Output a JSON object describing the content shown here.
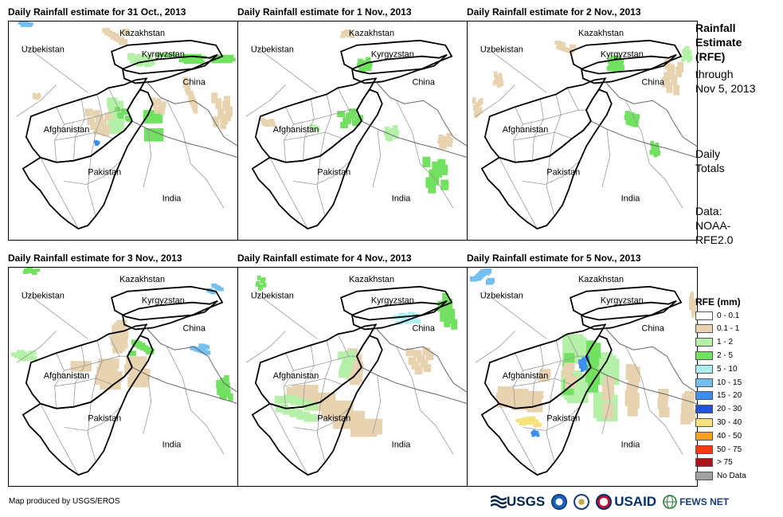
{
  "panels": [
    {
      "title": "Daily Rainfall estimate for 31 Oct., 2013"
    },
    {
      "title": "Daily Rainfall estimate for 1 Nov., 2013"
    },
    {
      "title": "Daily Rainfall estimate for 2 Nov., 2013"
    },
    {
      "title": "Daily Rainfall estimate for 3 Nov., 2013"
    },
    {
      "title": "Daily Rainfall estimate for 4 Nov., 2013"
    },
    {
      "title": "Daily Rainfall estimate for 5 Nov., 2013"
    }
  ],
  "countries": {
    "kazakhstan": "Kazakhstan",
    "uzbekistan": "Uzbekistan",
    "kyrgyzstan": "Kyrgyzstan",
    "china": "China",
    "afghanistan": "Afghanistan",
    "pakistan": "Pakistan",
    "india": "India"
  },
  "sidebar": {
    "title_line1": "Rainfall",
    "title_line2": "Estimate",
    "title_line3": "(RFE)",
    "through": "through",
    "date": "Nov 5, 2013",
    "daily1": "Daily",
    "daily2": "Totals",
    "data1": "Data:",
    "data2": "NOAA-",
    "data3": "RFE2.0"
  },
  "legend": {
    "title": "RFE (mm)",
    "items": [
      {
        "label": "0 - 0.1",
        "color": "#ffffff"
      },
      {
        "label": "0.1 - 1",
        "color": "#e8d3b0"
      },
      {
        "label": "1 - 2",
        "color": "#b4f0a8"
      },
      {
        "label": "2 - 5",
        "color": "#72e060"
      },
      {
        "label": "5 - 10",
        "color": "#aeeef2"
      },
      {
        "label": "10 - 15",
        "color": "#74bff0"
      },
      {
        "label": "15 - 20",
        "color": "#3c8ff0"
      },
      {
        "label": "20 - 30",
        "color": "#1f54d8"
      },
      {
        "label": "30 - 40",
        "color": "#f5e27a"
      },
      {
        "label": "40 - 50",
        "color": "#f7a21e"
      },
      {
        "label": "50 - 75",
        "color": "#f23c0f"
      },
      {
        "label": "> 75",
        "color": "#a8161a"
      },
      {
        "label": "No Data",
        "color": "#a0a0a0"
      }
    ]
  },
  "footer": {
    "credit": "Map produced by USGS/EROS",
    "usgs": "USGS",
    "usaid": "USAID",
    "fewsnet": "FEWS NET"
  }
}
